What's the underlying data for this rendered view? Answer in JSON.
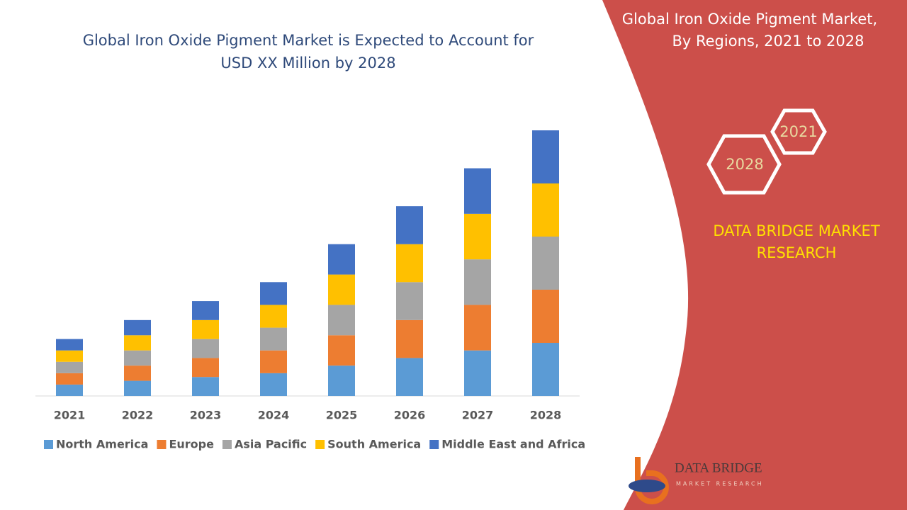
{
  "chart_data": {
    "type": "stacked-bar",
    "title_lines": [
      "Global Iron Oxide Pigment Market is Expected to Account for",
      "USD XX Million by 2028"
    ],
    "categories": [
      "2021",
      "2022",
      "2023",
      "2024",
      "2025",
      "2026",
      "2027",
      "2028"
    ],
    "series": [
      {
        "name": "North America",
        "color": "#5b9bd5",
        "values": [
          3,
          4,
          5,
          6,
          8,
          10,
          12,
          14
        ]
      },
      {
        "name": "Europe",
        "color": "#ed7d31",
        "values": [
          3,
          4,
          5,
          6,
          8,
          10,
          12,
          14
        ]
      },
      {
        "name": "Asia Pacific",
        "color": "#a5a5a5",
        "values": [
          3,
          4,
          5,
          6,
          8,
          10,
          12,
          14
        ]
      },
      {
        "name": "South America",
        "color": "#ffc000",
        "values": [
          3,
          4,
          5,
          6,
          8,
          10,
          12,
          14
        ]
      },
      {
        "name": "Middle East and Africa",
        "color": "#4472c4",
        "values": [
          3,
          4,
          5,
          6,
          8,
          10,
          12,
          14
        ]
      }
    ],
    "ylim": [
      0,
      70
    ],
    "legend": "bottom"
  },
  "panel": {
    "title_lines": [
      "Global Iron Oxide Pigment Market,",
      "By Regions, 2021 to 2028"
    ],
    "hexagons": [
      "2021",
      "2028"
    ],
    "brand_lines": [
      "DATA BRIDGE MARKET",
      "RESEARCH"
    ],
    "logo": {
      "name": "DATA BRIDGE",
      "tagline": "MARKET RESEARCH"
    }
  }
}
